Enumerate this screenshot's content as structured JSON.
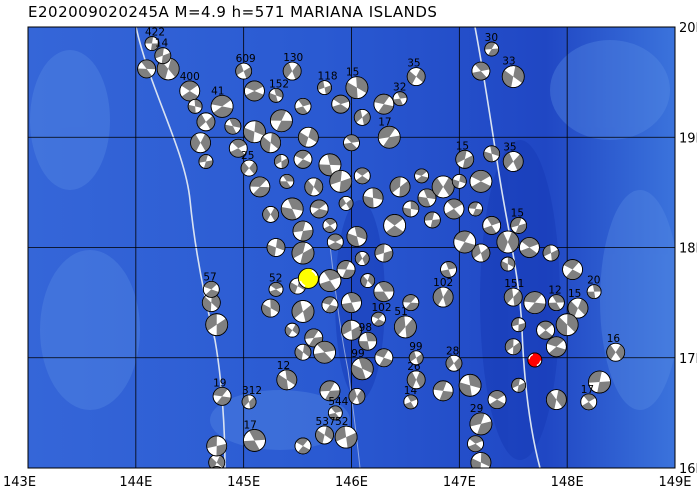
{
  "title": "E202009020245A  M=4.9  h=571  MARIANA ISLANDS",
  "colors": {
    "ocean_deep": "#1a47c8",
    "ocean_mid": "#2d63d8",
    "ocean_light": "#5b8ee6",
    "trench": "#1639b5",
    "grid": "#000000",
    "contour": "#d8e2f2",
    "beachball_fill": "#808080",
    "beachball_white": "#ffffff",
    "event_highlight_main": "#ff0000",
    "event_highlight_other": "#ffff00"
  },
  "map": {
    "lon_range": [
      143,
      149
    ],
    "lat_range": [
      16,
      20
    ],
    "x_ticks": [
      "143E",
      "144E",
      "145E",
      "146E",
      "147E",
      "148E",
      "149E"
    ],
    "y_ticks": [
      "16N",
      "17N",
      "18N",
      "19N",
      "20N"
    ]
  },
  "events": [
    {
      "lon": 144.15,
      "lat": 19.85,
      "label": "422",
      "hl": ""
    },
    {
      "lon": 144.1,
      "lat": 19.62,
      "label": "",
      "hl": ""
    },
    {
      "lon": 144.3,
      "lat": 19.62,
      "label": "",
      "hl": ""
    },
    {
      "lon": 144.25,
      "lat": 19.74,
      "label": "14",
      "hl": ""
    },
    {
      "lon": 144.5,
      "lat": 19.42,
      "label": "400",
      "hl": ""
    },
    {
      "lon": 144.55,
      "lat": 19.28,
      "label": "",
      "hl": ""
    },
    {
      "lon": 144.65,
      "lat": 19.14,
      "label": "",
      "hl": ""
    },
    {
      "lon": 144.8,
      "lat": 19.28,
      "label": "41",
      "hl": ""
    },
    {
      "lon": 144.9,
      "lat": 19.1,
      "label": "",
      "hl": ""
    },
    {
      "lon": 144.6,
      "lat": 18.95,
      "label": "",
      "hl": ""
    },
    {
      "lon": 144.65,
      "lat": 18.78,
      "label": "",
      "hl": ""
    },
    {
      "lon": 144.95,
      "lat": 18.9,
      "label": "",
      "hl": ""
    },
    {
      "lon": 145.1,
      "lat": 19.05,
      "label": "",
      "hl": ""
    },
    {
      "lon": 145.0,
      "lat": 19.6,
      "label": "609",
      "hl": ""
    },
    {
      "lon": 145.1,
      "lat": 19.42,
      "label": "",
      "hl": ""
    },
    {
      "lon": 145.3,
      "lat": 19.38,
      "label": "152",
      "hl": ""
    },
    {
      "lon": 145.45,
      "lat": 19.6,
      "label": "130",
      "hl": ""
    },
    {
      "lon": 145.35,
      "lat": 19.15,
      "label": "",
      "hl": ""
    },
    {
      "lon": 145.55,
      "lat": 19.28,
      "label": "",
      "hl": ""
    },
    {
      "lon": 145.6,
      "lat": 19.0,
      "label": "",
      "hl": ""
    },
    {
      "lon": 145.75,
      "lat": 19.45,
      "label": "118",
      "hl": ""
    },
    {
      "lon": 145.9,
      "lat": 19.3,
      "label": "",
      "hl": ""
    },
    {
      "lon": 146.05,
      "lat": 19.45,
      "label": "15",
      "hl": ""
    },
    {
      "lon": 146.1,
      "lat": 19.18,
      "label": "",
      "hl": ""
    },
    {
      "lon": 146.3,
      "lat": 19.3,
      "label": "",
      "hl": ""
    },
    {
      "lon": 146.45,
      "lat": 19.35,
      "label": "32",
      "hl": ""
    },
    {
      "lon": 146.6,
      "lat": 19.55,
      "label": "35",
      "hl": ""
    },
    {
      "lon": 146.35,
      "lat": 19.0,
      "label": "17",
      "hl": ""
    },
    {
      "lon": 146.0,
      "lat": 18.95,
      "label": "",
      "hl": ""
    },
    {
      "lon": 145.25,
      "lat": 18.95,
      "label": "",
      "hl": ""
    },
    {
      "lon": 145.35,
      "lat": 18.78,
      "label": "",
      "hl": ""
    },
    {
      "lon": 145.55,
      "lat": 18.8,
      "label": "",
      "hl": ""
    },
    {
      "lon": 145.8,
      "lat": 18.75,
      "label": "",
      "hl": ""
    },
    {
      "lon": 145.05,
      "lat": 18.72,
      "label": "25",
      "hl": ""
    },
    {
      "lon": 145.15,
      "lat": 18.55,
      "label": "",
      "hl": ""
    },
    {
      "lon": 145.4,
      "lat": 18.6,
      "label": "",
      "hl": ""
    },
    {
      "lon": 145.65,
      "lat": 18.55,
      "label": "",
      "hl": ""
    },
    {
      "lon": 145.9,
      "lat": 18.6,
      "label": "",
      "hl": ""
    },
    {
      "lon": 146.1,
      "lat": 18.65,
      "label": "",
      "hl": ""
    },
    {
      "lon": 146.2,
      "lat": 18.45,
      "label": "",
      "hl": ""
    },
    {
      "lon": 145.95,
      "lat": 18.4,
      "label": "",
      "hl": ""
    },
    {
      "lon": 145.7,
      "lat": 18.35,
      "label": "",
      "hl": ""
    },
    {
      "lon": 145.45,
      "lat": 18.35,
      "label": "",
      "hl": ""
    },
    {
      "lon": 145.25,
      "lat": 18.3,
      "label": "",
      "hl": ""
    },
    {
      "lon": 145.55,
      "lat": 18.15,
      "label": "",
      "hl": ""
    },
    {
      "lon": 145.8,
      "lat": 18.2,
      "label": "",
      "hl": ""
    },
    {
      "lon": 145.3,
      "lat": 18.0,
      "label": "",
      "hl": ""
    },
    {
      "lon": 145.55,
      "lat": 17.95,
      "label": "",
      "hl": ""
    },
    {
      "lon": 145.85,
      "lat": 18.05,
      "label": "",
      "hl": ""
    },
    {
      "lon": 146.05,
      "lat": 18.1,
      "label": "",
      "hl": ""
    },
    {
      "lon": 146.1,
      "lat": 17.9,
      "label": "",
      "hl": ""
    },
    {
      "lon": 145.95,
      "lat": 17.8,
      "label": "",
      "hl": ""
    },
    {
      "lon": 145.8,
      "lat": 17.7,
      "label": "",
      "hl": ""
    },
    {
      "lon": 145.5,
      "lat": 17.65,
      "label": "",
      "hl": ""
    },
    {
      "lon": 145.6,
      "lat": 17.72,
      "label": "",
      "hl": "yellow"
    },
    {
      "lon": 145.3,
      "lat": 17.62,
      "label": "52",
      "hl": ""
    },
    {
      "lon": 145.25,
      "lat": 17.45,
      "label": "",
      "hl": ""
    },
    {
      "lon": 145.55,
      "lat": 17.42,
      "label": "",
      "hl": ""
    },
    {
      "lon": 145.8,
      "lat": 17.48,
      "label": "",
      "hl": ""
    },
    {
      "lon": 146.0,
      "lat": 17.5,
      "label": "",
      "hl": ""
    },
    {
      "lon": 145.45,
      "lat": 17.25,
      "label": "",
      "hl": ""
    },
    {
      "lon": 145.65,
      "lat": 17.18,
      "label": "",
      "hl": ""
    },
    {
      "lon": 145.75,
      "lat": 17.05,
      "label": "",
      "hl": ""
    },
    {
      "lon": 145.55,
      "lat": 17.05,
      "label": "",
      "hl": ""
    },
    {
      "lon": 146.0,
      "lat": 17.25,
      "label": "",
      "hl": ""
    },
    {
      "lon": 146.25,
      "lat": 17.35,
      "label": "102",
      "hl": ""
    },
    {
      "lon": 146.15,
      "lat": 17.15,
      "label": "98",
      "hl": ""
    },
    {
      "lon": 146.5,
      "lat": 17.28,
      "label": "51",
      "hl": ""
    },
    {
      "lon": 146.55,
      "lat": 17.5,
      "label": "",
      "hl": ""
    },
    {
      "lon": 146.3,
      "lat": 17.6,
      "label": "",
      "hl": ""
    },
    {
      "lon": 146.15,
      "lat": 17.7,
      "label": "",
      "hl": ""
    },
    {
      "lon": 146.3,
      "lat": 17.95,
      "label": "",
      "hl": ""
    },
    {
      "lon": 146.4,
      "lat": 18.2,
      "label": "",
      "hl": ""
    },
    {
      "lon": 146.55,
      "lat": 18.35,
      "label": "",
      "hl": ""
    },
    {
      "lon": 146.45,
      "lat": 18.55,
      "label": "",
      "hl": ""
    },
    {
      "lon": 146.65,
      "lat": 18.65,
      "label": "",
      "hl": ""
    },
    {
      "lon": 146.7,
      "lat": 18.45,
      "label": "",
      "hl": ""
    },
    {
      "lon": 146.85,
      "lat": 18.55,
      "label": "",
      "hl": ""
    },
    {
      "lon": 146.75,
      "lat": 18.25,
      "label": "",
      "hl": ""
    },
    {
      "lon": 146.95,
      "lat": 18.35,
      "label": "",
      "hl": ""
    },
    {
      "lon": 147.0,
      "lat": 18.6,
      "label": "",
      "hl": ""
    },
    {
      "lon": 147.05,
      "lat": 18.8,
      "label": "15",
      "hl": ""
    },
    {
      "lon": 147.2,
      "lat": 18.6,
      "label": "",
      "hl": ""
    },
    {
      "lon": 147.3,
      "lat": 18.85,
      "label": "",
      "hl": ""
    },
    {
      "lon": 147.5,
      "lat": 18.78,
      "label": "35",
      "hl": ""
    },
    {
      "lon": 147.15,
      "lat": 18.35,
      "label": "",
      "hl": ""
    },
    {
      "lon": 147.3,
      "lat": 18.2,
      "label": "",
      "hl": ""
    },
    {
      "lon": 147.45,
      "lat": 18.05,
      "label": "",
      "hl": ""
    },
    {
      "lon": 147.55,
      "lat": 18.2,
      "label": "15",
      "hl": ""
    },
    {
      "lon": 147.65,
      "lat": 18.0,
      "label": "",
      "hl": ""
    },
    {
      "lon": 147.45,
      "lat": 17.85,
      "label": "",
      "hl": ""
    },
    {
      "lon": 147.2,
      "lat": 17.95,
      "label": "",
      "hl": ""
    },
    {
      "lon": 147.05,
      "lat": 18.05,
      "label": "",
      "hl": ""
    },
    {
      "lon": 146.9,
      "lat": 17.8,
      "label": "",
      "hl": ""
    },
    {
      "lon": 146.85,
      "lat": 17.55,
      "label": "102",
      "hl": ""
    },
    {
      "lon": 147.3,
      "lat": 19.8,
      "label": "30",
      "hl": ""
    },
    {
      "lon": 147.2,
      "lat": 19.6,
      "label": "",
      "hl": ""
    },
    {
      "lon": 147.5,
      "lat": 19.55,
      "label": "33",
      "hl": ""
    },
    {
      "lon": 147.85,
      "lat": 17.95,
      "label": "",
      "hl": ""
    },
    {
      "lon": 148.05,
      "lat": 17.8,
      "label": "",
      "hl": ""
    },
    {
      "lon": 148.25,
      "lat": 17.6,
      "label": "20",
      "hl": ""
    },
    {
      "lon": 147.5,
      "lat": 17.55,
      "label": "151",
      "hl": ""
    },
    {
      "lon": 147.7,
      "lat": 17.5,
      "label": "",
      "hl": ""
    },
    {
      "lon": 147.9,
      "lat": 17.5,
      "label": "12",
      "hl": ""
    },
    {
      "lon": 148.1,
      "lat": 17.45,
      "label": "15",
      "hl": ""
    },
    {
      "lon": 147.55,
      "lat": 17.3,
      "label": "",
      "hl": ""
    },
    {
      "lon": 147.8,
      "lat": 17.25,
      "label": "",
      "hl": ""
    },
    {
      "lon": 148.0,
      "lat": 17.3,
      "label": "",
      "hl": ""
    },
    {
      "lon": 147.5,
      "lat": 17.1,
      "label": "",
      "hl": ""
    },
    {
      "lon": 147.9,
      "lat": 17.1,
      "label": "",
      "hl": ""
    },
    {
      "lon": 147.7,
      "lat": 16.98,
      "label": "",
      "hl": "red"
    },
    {
      "lon": 148.45,
      "lat": 17.05,
      "label": "16",
      "hl": ""
    },
    {
      "lon": 148.3,
      "lat": 16.78,
      "label": "",
      "hl": ""
    },
    {
      "lon": 148.2,
      "lat": 16.6,
      "label": "17",
      "hl": ""
    },
    {
      "lon": 147.9,
      "lat": 16.62,
      "label": "",
      "hl": ""
    },
    {
      "lon": 147.55,
      "lat": 16.75,
      "label": "",
      "hl": ""
    },
    {
      "lon": 147.35,
      "lat": 16.62,
      "label": "",
      "hl": ""
    },
    {
      "lon": 147.1,
      "lat": 16.75,
      "label": "",
      "hl": ""
    },
    {
      "lon": 146.95,
      "lat": 16.95,
      "label": "28",
      "hl": ""
    },
    {
      "lon": 146.85,
      "lat": 16.7,
      "label": "",
      "hl": ""
    },
    {
      "lon": 146.55,
      "lat": 16.6,
      "label": "14",
      "hl": ""
    },
    {
      "lon": 146.6,
      "lat": 16.8,
      "label": "26",
      "hl": ""
    },
    {
      "lon": 147.2,
      "lat": 16.4,
      "label": "29",
      "hl": ""
    },
    {
      "lon": 147.15,
      "lat": 16.22,
      "label": "",
      "hl": ""
    },
    {
      "lon": 147.2,
      "lat": 16.05,
      "label": "",
      "hl": ""
    },
    {
      "lon": 146.6,
      "lat": 17.0,
      "label": "99",
      "hl": ""
    },
    {
      "lon": 146.3,
      "lat": 17.0,
      "label": "",
      "hl": ""
    },
    {
      "lon": 146.1,
      "lat": 16.9,
      "label": "99",
      "hl": ""
    },
    {
      "lon": 146.05,
      "lat": 16.65,
      "label": "",
      "hl": ""
    },
    {
      "lon": 145.8,
      "lat": 16.7,
      "label": "",
      "hl": ""
    },
    {
      "lon": 145.85,
      "lat": 16.5,
      "label": "544",
      "hl": ""
    },
    {
      "lon": 145.75,
      "lat": 16.3,
      "label": "537",
      "hl": ""
    },
    {
      "lon": 145.95,
      "lat": 16.28,
      "label": "52",
      "hl": ""
    },
    {
      "lon": 145.55,
      "lat": 16.2,
      "label": "",
      "hl": ""
    },
    {
      "lon": 145.4,
      "lat": 16.8,
      "label": "12",
      "hl": ""
    },
    {
      "lon": 145.05,
      "lat": 16.6,
      "label": "312",
      "hl": ""
    },
    {
      "lon": 144.8,
      "lat": 16.65,
      "label": "19",
      "hl": ""
    },
    {
      "lon": 145.1,
      "lat": 16.25,
      "label": "17",
      "hl": ""
    },
    {
      "lon": 144.75,
      "lat": 16.05,
      "label": "",
      "hl": ""
    },
    {
      "lon": 144.75,
      "lat": 16.2,
      "label": "",
      "hl": ""
    },
    {
      "lon": 144.75,
      "lat": 15.95,
      "label": "",
      "hl": ""
    },
    {
      "lon": 144.7,
      "lat": 17.5,
      "label": "15",
      "hl": ""
    },
    {
      "lon": 144.75,
      "lat": 17.3,
      "label": "",
      "hl": ""
    },
    {
      "lon": 144.7,
      "lat": 17.62,
      "label": "57",
      "hl": ""
    }
  ]
}
